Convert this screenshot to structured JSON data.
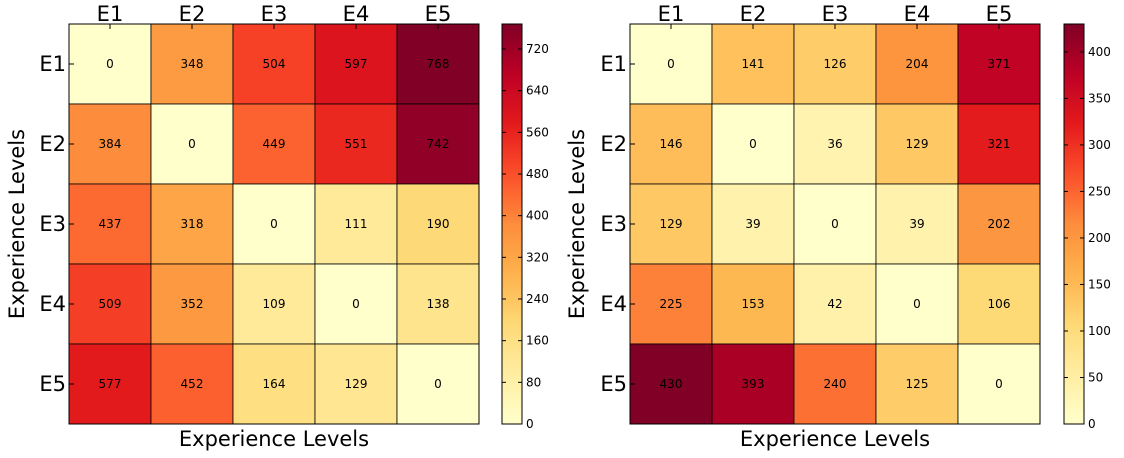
{
  "chart_data": [
    {
      "type": "heatmap",
      "x_categories": [
        "E1",
        "E2",
        "E3",
        "E4",
        "E5"
      ],
      "y_categories": [
        "E1",
        "E2",
        "E3",
        "E4",
        "E5"
      ],
      "xlabel": "Experience Levels",
      "ylabel": "Experience Levels",
      "values": [
        [
          0,
          348,
          504,
          597,
          768
        ],
        [
          384,
          0,
          449,
          551,
          742
        ],
        [
          437,
          318,
          0,
          111,
          190
        ],
        [
          509,
          352,
          109,
          0,
          138
        ],
        [
          577,
          452,
          164,
          129,
          0
        ]
      ],
      "colormap": "YlOrRd",
      "vmin": 0,
      "vmax": 768,
      "colorbar_ticks": [
        0,
        80,
        160,
        240,
        320,
        400,
        480,
        560,
        640,
        720
      ]
    },
    {
      "type": "heatmap",
      "x_categories": [
        "E1",
        "E2",
        "E3",
        "E4",
        "E5"
      ],
      "y_categories": [
        "E1",
        "E2",
        "E3",
        "E4",
        "E5"
      ],
      "xlabel": "Experience Levels",
      "ylabel": "Experience Levels",
      "values": [
        [
          0,
          141,
          126,
          204,
          371
        ],
        [
          146,
          0,
          36,
          129,
          321
        ],
        [
          129,
          39,
          0,
          39,
          202
        ],
        [
          225,
          153,
          42,
          0,
          106
        ],
        [
          430,
          393,
          240,
          125,
          0
        ]
      ],
      "colormap": "YlOrRd",
      "vmin": 0,
      "vmax": 430,
      "colorbar_ticks": [
        0,
        50,
        100,
        150,
        200,
        250,
        300,
        350,
        400
      ]
    }
  ]
}
